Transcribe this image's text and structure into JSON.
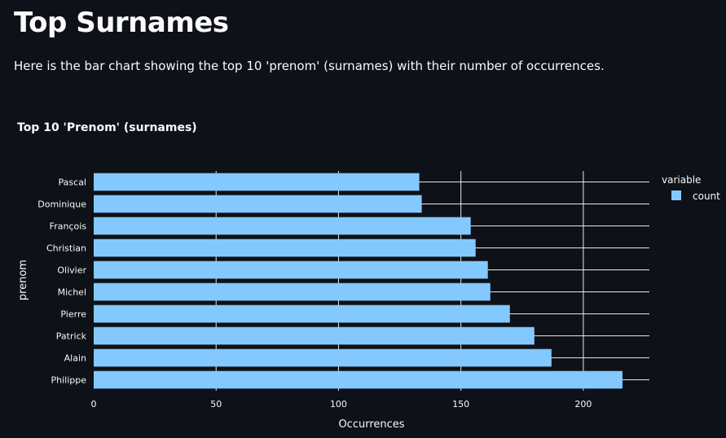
{
  "page": {
    "title": "Top Surnames",
    "description": "Here is the bar chart showing the top 10 'prenom' (surnames) with their number of occurrences."
  },
  "colors": {
    "background": "#0e1117",
    "bar": "#83c9ff",
    "grid": "#ffffff",
    "text": "#fafafa"
  },
  "chart_data": {
    "type": "bar",
    "orientation": "horizontal",
    "title": "Top 10 'Prenom' (surnames)",
    "xlabel": "Occurrences",
    "ylabel": "prenom",
    "categories": [
      "Pascal",
      "Dominique",
      "François",
      "Christian",
      "Olivier",
      "Michel",
      "Pierre",
      "Patrick",
      "Alain",
      "Philippe"
    ],
    "series": [
      {
        "name": "count",
        "values": [
          133,
          134,
          154,
          156,
          161,
          162,
          170,
          180,
          187,
          216
        ]
      }
    ],
    "xlim": [
      0,
      227
    ],
    "xticks": [
      0,
      50,
      100,
      150,
      200
    ],
    "grid": true,
    "legend": {
      "title": "variable",
      "placement": "right"
    }
  }
}
